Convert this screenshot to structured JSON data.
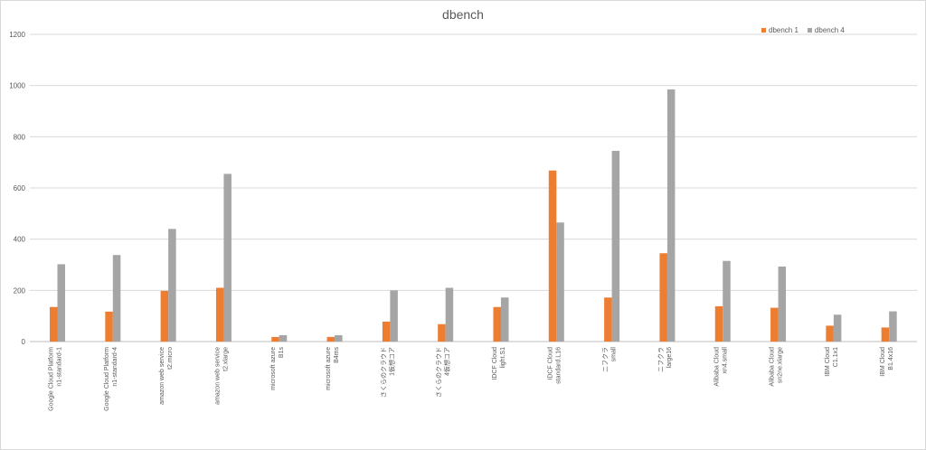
{
  "chart_data": {
    "type": "bar",
    "title": "dbench",
    "xlabel": "",
    "ylabel": "",
    "ylim": [
      0,
      1200
    ],
    "yticks": [
      0,
      200,
      400,
      600,
      800,
      1000,
      1200
    ],
    "grid": true,
    "legend_position": "top-right",
    "categories": [
      [
        "Google Cloud Platform",
        "n1-standard-1"
      ],
      [
        "Google Cloud Platform",
        "n1-standard-4"
      ],
      [
        "amazon web service",
        "t2.micro"
      ],
      [
        "amazon web service",
        "t2.xlarge"
      ],
      [
        "microsoft azure",
        "B1s"
      ],
      [
        "microsoft azure",
        "B4ms"
      ],
      [
        "さくらのクラウド",
        "1仮想コア"
      ],
      [
        "さくらのクラウド",
        "4仮想コア"
      ],
      [
        "IDCF Cloud",
        "light.S1"
      ],
      [
        "IDCF Cloud",
        "standard.L16"
      ],
      [
        "ニフクラ",
        "small"
      ],
      [
        "ニフクラ",
        "large16"
      ],
      [
        "Alibaba Cloud",
        "xn4.small"
      ],
      [
        "Alibaba Cloud",
        "sn2ne.xlarge"
      ],
      [
        "IBM Cloud",
        "C1.1x1"
      ],
      [
        "IBM Cloud",
        "B1.4x16"
      ]
    ],
    "series": [
      {
        "name": "dbench 1",
        "color": "#ed7d31",
        "values": [
          135,
          117,
          198,
          210,
          18,
          18,
          78,
          68,
          135,
          668,
          172,
          345,
          138,
          132,
          62,
          55
        ]
      },
      {
        "name": "dbench 4",
        "color": "#a5a5a5",
        "values": [
          302,
          338,
          440,
          655,
          25,
          25,
          200,
          210,
          172,
          465,
          745,
          985,
          315,
          293,
          105,
          118
        ]
      }
    ]
  }
}
